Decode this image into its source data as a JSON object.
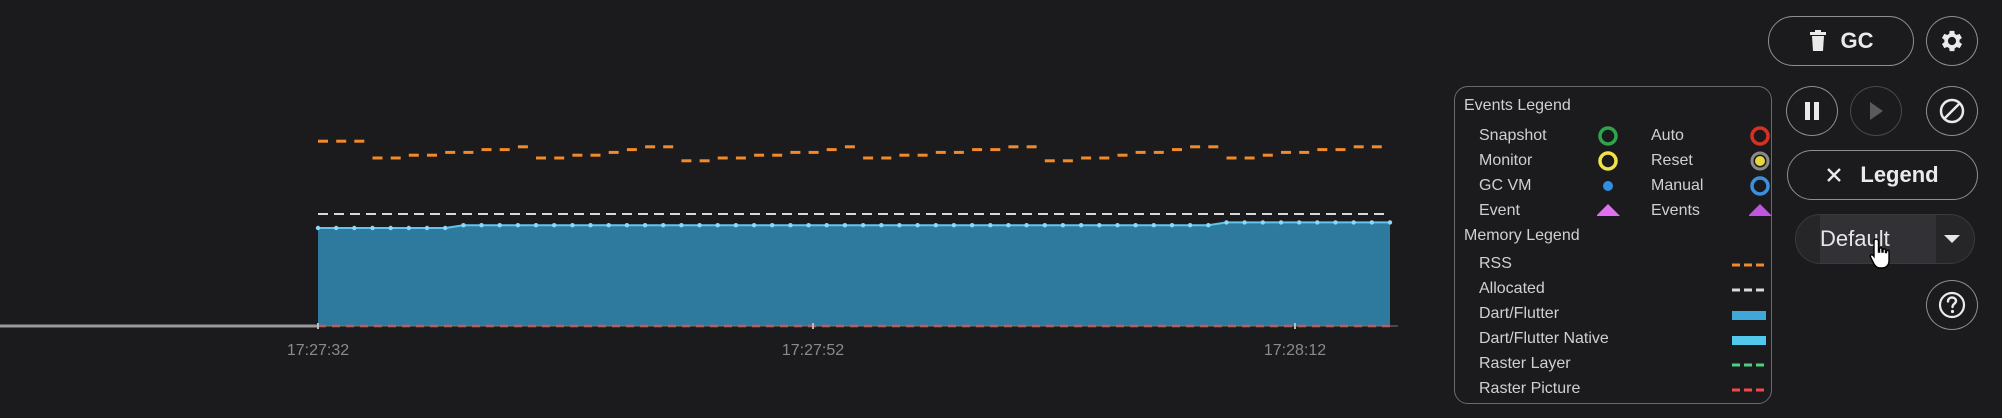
{
  "toolbar": {
    "gc_label": "GC",
    "legend_label": "Legend",
    "mode_value": "Default"
  },
  "legend": {
    "events_title": "Events Legend",
    "memory_title": "Memory Legend",
    "events": [
      {
        "label": "Snapshot",
        "icon": "ring",
        "color": "#2ea44f"
      },
      {
        "label": "Auto",
        "icon": "ring",
        "color": "#d93025"
      },
      {
        "label": "Monitor",
        "icon": "ring",
        "color": "#f1e14b"
      },
      {
        "label": "Reset",
        "icon": "ring-filled",
        "color": "#e6d83a"
      },
      {
        "label": "GC VM",
        "icon": "dot",
        "color": "#2f8fe0"
      },
      {
        "label": "Manual",
        "icon": "ring",
        "color": "#3d8fe0"
      },
      {
        "label": "Event",
        "icon": "triangle",
        "color": "#e070f0"
      },
      {
        "label": "Events",
        "icon": "triangle",
        "color": "#c055e0"
      }
    ],
    "memory": [
      {
        "label": "RSS",
        "style": "dashed",
        "color": "#f08a2a"
      },
      {
        "label": "Allocated",
        "style": "dashed",
        "color": "#d8d8d8"
      },
      {
        "label": "Dart/Flutter",
        "style": "solid",
        "color": "#3fa8d8"
      },
      {
        "label": "Dart/Flutter Native",
        "style": "solid",
        "color": "#52c8ec"
      },
      {
        "label": "Raster Layer",
        "style": "dashed",
        "color": "#4cd080"
      },
      {
        "label": "Raster Picture",
        "style": "dashed",
        "color": "#f04a4a"
      }
    ]
  },
  "chart_data": {
    "type": "area",
    "x_ticks": [
      "17:27:32",
      "17:27:52",
      "17:28:12"
    ],
    "ylim": [
      0,
      100
    ],
    "series": [
      {
        "name": "RSS",
        "style": "dashed",
        "color": "#f08a2a",
        "values": [
          66,
          66,
          66,
          60,
          60,
          61,
          61,
          62,
          62,
          63,
          63,
          64,
          60,
          60,
          61,
          61,
          62,
          63,
          64,
          64,
          59,
          59,
          60,
          60,
          61,
          61,
          62,
          62,
          63,
          64,
          60,
          60,
          61,
          61,
          62,
          62,
          63,
          63,
          64,
          64,
          59,
          59,
          60,
          60,
          61,
          62,
          62,
          63,
          64,
          64,
          60,
          60,
          61,
          62,
          62,
          63,
          63,
          64,
          64,
          65
        ]
      },
      {
        "name": "Allocated",
        "style": "dashed",
        "color": "#d8d8d8",
        "values": [
          40,
          40,
          40,
          40,
          40,
          40,
          40,
          40,
          40,
          40,
          40,
          40,
          40,
          40,
          40,
          40,
          40,
          40,
          40,
          40,
          40,
          40,
          40,
          40,
          40,
          40,
          40,
          40,
          40,
          40,
          40,
          40,
          40,
          40,
          40,
          40,
          40,
          40,
          40,
          40,
          40,
          40,
          40,
          40,
          40,
          40,
          40,
          40,
          40,
          40,
          40,
          40,
          40,
          40,
          40,
          40,
          40,
          40,
          40,
          40
        ]
      },
      {
        "name": "Dart/Flutter",
        "style": "area",
        "color": "#2f7fa6",
        "values": [
          35,
          35,
          35,
          35,
          35,
          35,
          35,
          35,
          36,
          36,
          36,
          36,
          36,
          36,
          36,
          36,
          36,
          36,
          36,
          36,
          36,
          36,
          36,
          36,
          36,
          36,
          36,
          36,
          36,
          36,
          36,
          36,
          36,
          36,
          36,
          36,
          36,
          36,
          36,
          36,
          36,
          36,
          36,
          36,
          36,
          36,
          36,
          36,
          36,
          36,
          37,
          37,
          37,
          37,
          37,
          37,
          37,
          37,
          37,
          37
        ]
      },
      {
        "name": "Raster Picture",
        "style": "dashed",
        "color": "#f04a4a",
        "values": [
          0,
          0,
          0,
          0,
          0,
          0,
          0,
          0,
          0,
          0
        ]
      }
    ]
  }
}
